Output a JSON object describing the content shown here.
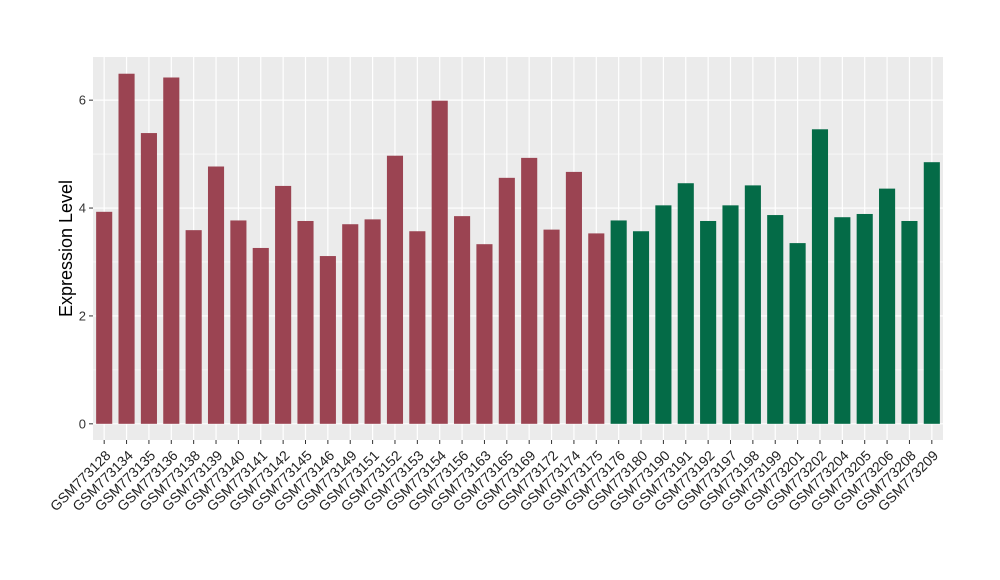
{
  "chart_data": {
    "type": "bar",
    "title": "",
    "xlabel": "",
    "ylabel": "Expression Level",
    "ylim": [
      -0.3,
      6.8
    ],
    "yticks": [
      0,
      2,
      4,
      6
    ],
    "grid": true,
    "legend": "none",
    "colors": {
      "group1": "#9b4452",
      "group2": "#046b47",
      "panel": "#ebebeb",
      "grid": "#ffffff"
    },
    "categories": [
      "GSM773128",
      "GSM773134",
      "GSM773135",
      "GSM773136",
      "GSM773138",
      "GSM773139",
      "GSM773140",
      "GSM773141",
      "GSM773142",
      "GSM773145",
      "GSM773146",
      "GSM773149",
      "GSM773151",
      "GSM773152",
      "GSM773153",
      "GSM773154",
      "GSM773156",
      "GSM773163",
      "GSM773165",
      "GSM773169",
      "GSM773172",
      "GSM773174",
      "GSM773175",
      "GSM773176",
      "GSM773180",
      "GSM773190",
      "GSM773191",
      "GSM773192",
      "GSM773197",
      "GSM773198",
      "GSM773199",
      "GSM773201",
      "GSM773202",
      "GSM773204",
      "GSM773205",
      "GSM773206",
      "GSM773208",
      "GSM773209"
    ],
    "values": [
      3.93,
      6.49,
      5.39,
      6.42,
      3.59,
      4.77,
      3.77,
      3.26,
      4.41,
      3.76,
      3.11,
      3.7,
      3.79,
      4.97,
      3.57,
      5.99,
      3.85,
      3.33,
      4.56,
      4.93,
      3.6,
      4.67,
      3.53,
      3.77,
      3.57,
      4.05,
      4.46,
      3.76,
      4.05,
      4.42,
      3.87,
      3.35,
      5.46,
      3.83,
      3.89,
      4.36,
      3.76,
      4.85
    ],
    "groups": [
      1,
      1,
      1,
      1,
      1,
      1,
      1,
      1,
      1,
      1,
      1,
      1,
      1,
      1,
      1,
      1,
      1,
      1,
      1,
      1,
      1,
      1,
      1,
      2,
      2,
      2,
      2,
      2,
      2,
      2,
      2,
      2,
      2,
      2,
      2,
      2,
      2,
      2
    ]
  }
}
